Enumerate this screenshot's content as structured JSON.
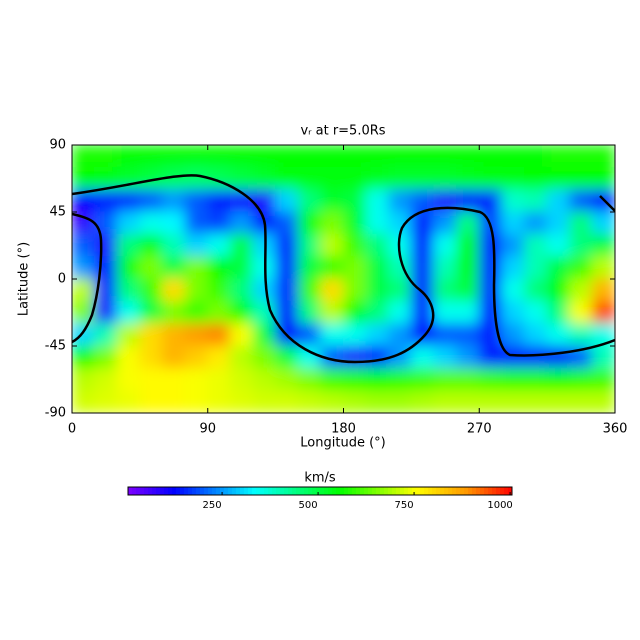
{
  "chart_data": {
    "type": "heatmap",
    "title": "vᵣ at r=5.0Rs",
    "x_label": "Longitude (°)",
    "y_label": "Latitude (°)",
    "colorbar_label": "km/s",
    "x": [
      7.5,
      22.5,
      37.5,
      52.5,
      67.5,
      82.5,
      97.5,
      112.5,
      127.5,
      142.5,
      157.5,
      172.5,
      187.5,
      202.5,
      217.5,
      232.5,
      247.5,
      262.5,
      277.5,
      292.5,
      307.5,
      322.5,
      337.5,
      352.5
    ],
    "y": [
      82.5,
      67.5,
      52.5,
      37.5,
      22.5,
      7.5,
      -7.5,
      -22.5,
      -37.5,
      -52.5,
      -67.5,
      -82.5
    ],
    "values": [
      [
        570,
        570,
        560,
        560,
        560,
        550,
        550,
        550,
        550,
        560,
        560,
        560,
        560,
        560,
        560,
        560,
        550,
        550,
        550,
        560,
        560,
        570,
        570,
        570
      ],
      [
        550,
        540,
        520,
        500,
        480,
        470,
        480,
        500,
        520,
        540,
        540,
        540,
        540,
        530,
        520,
        520,
        520,
        530,
        540,
        540,
        550,
        560,
        560,
        560
      ],
      [
        120,
        150,
        160,
        200,
        250,
        200,
        150,
        110,
        100,
        300,
        450,
        520,
        500,
        350,
        250,
        200,
        100,
        120,
        150,
        380,
        400,
        300,
        200,
        120
      ],
      [
        80,
        200,
        300,
        350,
        330,
        200,
        180,
        250,
        150,
        200,
        550,
        650,
        520,
        350,
        300,
        150,
        250,
        450,
        180,
        300,
        250,
        300,
        450,
        300
      ],
      [
        200,
        100,
        450,
        550,
        400,
        300,
        350,
        500,
        300,
        150,
        450,
        700,
        600,
        450,
        350,
        120,
        350,
        550,
        150,
        250,
        400,
        350,
        450,
        500
      ],
      [
        250,
        120,
        550,
        650,
        500,
        650,
        550,
        500,
        350,
        150,
        500,
        600,
        650,
        500,
        400,
        150,
        400,
        550,
        150,
        300,
        400,
        500,
        600,
        700
      ],
      [
        700,
        150,
        450,
        600,
        800,
        650,
        600,
        450,
        300,
        150,
        600,
        800,
        650,
        500,
        450,
        150,
        450,
        500,
        150,
        350,
        450,
        550,
        700,
        850
      ],
      [
        650,
        100,
        350,
        500,
        650,
        600,
        650,
        550,
        400,
        120,
        450,
        700,
        550,
        450,
        350,
        150,
        350,
        350,
        120,
        300,
        350,
        450,
        750,
        950
      ],
      [
        300,
        400,
        700,
        800,
        850,
        880,
        900,
        750,
        500,
        130,
        200,
        350,
        350,
        300,
        250,
        120,
        200,
        200,
        150,
        250,
        300,
        350,
        400,
        350
      ],
      [
        550,
        650,
        750,
        800,
        850,
        820,
        780,
        700,
        650,
        500,
        350,
        200,
        100,
        150,
        250,
        350,
        300,
        250,
        150,
        150,
        150,
        120,
        200,
        400
      ],
      [
        700,
        720,
        750,
        760,
        760,
        750,
        740,
        720,
        700,
        680,
        650,
        600,
        580,
        560,
        580,
        600,
        620,
        620,
        600,
        580,
        580,
        560,
        580,
        600
      ],
      [
        720,
        730,
        740,
        760,
        760,
        750,
        740,
        730,
        720,
        720,
        710,
        700,
        690,
        680,
        680,
        690,
        700,
        700,
        700,
        700,
        700,
        700,
        700,
        700
      ]
    ],
    "cell_width": 15,
    "cell_height": 15,
    "xlim": [
      0,
      360
    ],
    "ylim": [
      -90,
      90
    ],
    "xticks": [
      0,
      90,
      180,
      270,
      360
    ],
    "yticks": [
      -90,
      -45,
      0,
      45,
      90
    ],
    "clim": [
      5,
      1005
    ],
    "cticks": [
      250,
      500,
      750,
      1000
    ],
    "colorscale": [
      [
        0,
        "#7f00ff"
      ],
      [
        0.12,
        "#0000ff"
      ],
      [
        0.33,
        "#00ffff"
      ],
      [
        0.55,
        "#00ff00"
      ],
      [
        0.75,
        "#ffff00"
      ],
      [
        0.88,
        "#ff9900"
      ],
      [
        1,
        "#ff0000"
      ]
    ]
  }
}
